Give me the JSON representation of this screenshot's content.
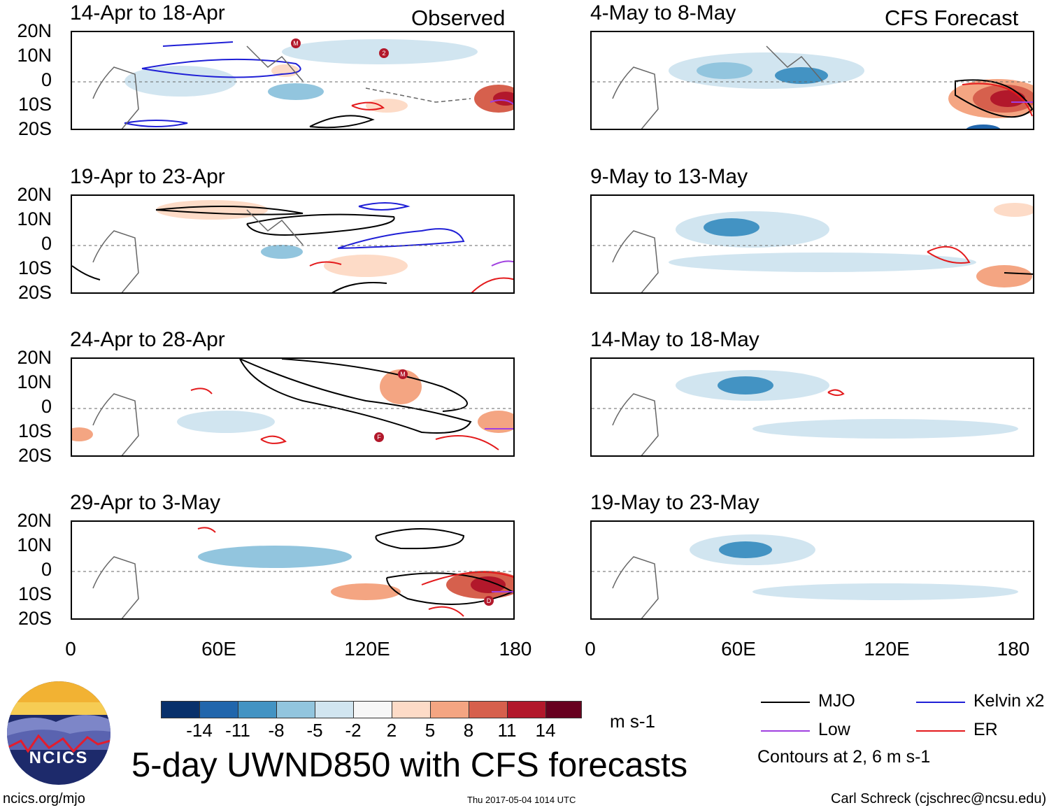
{
  "observed_label": "Observed",
  "forecast_label": "CFS Forecast",
  "lat_labels": [
    "20N",
    "10N",
    "0",
    "10S",
    "20S"
  ],
  "lon_labels": [
    "0",
    "60E",
    "120E",
    "180"
  ],
  "panels": {
    "left": [
      {
        "title": "14-Apr to 18-Apr"
      },
      {
        "title": "19-Apr to 23-Apr"
      },
      {
        "title": "24-Apr to 28-Apr"
      },
      {
        "title": "29-Apr to 3-May"
      }
    ],
    "right": [
      {
        "title": "4-May to 8-May"
      },
      {
        "title": "9-May to 13-May"
      },
      {
        "title": "14-May to 18-May"
      },
      {
        "title": "19-May to 23-May"
      }
    ]
  },
  "storm_markers": [
    "M",
    "2",
    "M",
    "F",
    "D"
  ],
  "colorbar": {
    "colors": [
      "#08306b",
      "#2166ac",
      "#4393c3",
      "#92c5de",
      "#d1e5f0",
      "#f7f7f7",
      "#fddbc7",
      "#f4a582",
      "#d6604d",
      "#b2182b",
      "#67001f"
    ],
    "labels": [
      "-14",
      "-11",
      "-8",
      "-5",
      "-2",
      "2",
      "5",
      "8",
      "11",
      "14"
    ],
    "units": "m s-1"
  },
  "legend": {
    "items": [
      {
        "label": "MJO",
        "color": "#000000"
      },
      {
        "label": "Kelvin x2",
        "color": "#1f1fd6"
      },
      {
        "label": "Low",
        "color": "#a040e0"
      },
      {
        "label": "ER",
        "color": "#e31a1c"
      }
    ],
    "note": "Contours at 2, 6 m s-1"
  },
  "logo_text": "NCICS",
  "main_title": "5-day UWND850 with CFS forecasts",
  "footer": {
    "url": "ncics.org/mjo",
    "timestamp": "Thu 2017-05-04 1014 UTC",
    "credit": "Carl Schreck (cjschrec@ncsu.edu)"
  }
}
